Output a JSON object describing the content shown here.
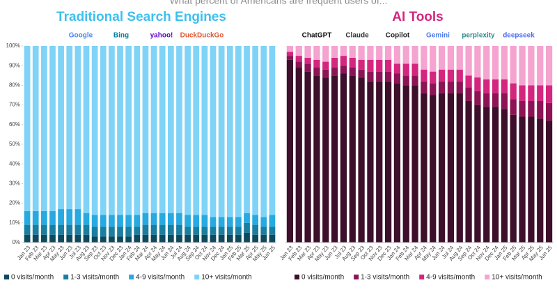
{
  "header": {
    "title": "What percent of Americans are frequent users of..."
  },
  "chart_data": [
    {
      "type": "bar",
      "stacked": true,
      "title": "Traditional Search Engines",
      "title_color": "#3cc0ef",
      "logos": [
        "Google",
        "Bing",
        "yahoo!",
        "DuckDuckGo"
      ],
      "logo_colors": [
        "#4285f4",
        "#00809d",
        "#6001d2",
        "#de5833"
      ],
      "categories": [
        "Jan 23",
        "Feb 23",
        "Mar 23",
        "Apr 23",
        "May 23",
        "Jun 23",
        "Jul 23",
        "Aug 23",
        "Sep 23",
        "Oct 23",
        "Nov 23",
        "Dec 23",
        "Jan 24",
        "Feb 24",
        "Mar 24",
        "Apr 24",
        "May 24",
        "Jun 24",
        "Jul 24",
        "Aug 24",
        "Sep 24",
        "Oct 24",
        "Nov 24",
        "Dec 24",
        "Jan 25",
        "Feb 25",
        "Mar 25",
        "Apr 25",
        "May 25",
        "Jun 25"
      ],
      "ylim": [
        0,
        100
      ],
      "yticks": [
        {
          "value": 0,
          "label": "0%"
        },
        {
          "value": 10,
          "label": "10%"
        },
        {
          "value": 20,
          "label": "20%"
        },
        {
          "value": 30,
          "label": "30%"
        },
        {
          "value": 40,
          "label": "40%"
        },
        {
          "value": 50,
          "label": "50%"
        },
        {
          "value": 60,
          "label": "60%"
        },
        {
          "value": 70,
          "label": "70%"
        },
        {
          "value": 80,
          "label": "80%"
        },
        {
          "value": 90,
          "label": "90%"
        },
        {
          "value": 100,
          "label": "100%"
        }
      ],
      "series": [
        {
          "name": "0 visits/month",
          "color": "#0d4a5e",
          "values": [
            4,
            4,
            4,
            4,
            4,
            4,
            4,
            4,
            3,
            3,
            3,
            3,
            3,
            4,
            4,
            4,
            4,
            4,
            4,
            4,
            4,
            4,
            4,
            4,
            4,
            4,
            5,
            4,
            4,
            4
          ]
        },
        {
          "name": "1-3 visits/month",
          "color": "#1a7ea0",
          "values": [
            5,
            5,
            5,
            5,
            5,
            5,
            5,
            5,
            5,
            5,
            5,
            5,
            5,
            4,
            5,
            5,
            5,
            5,
            5,
            4,
            4,
            4,
            4,
            4,
            4,
            4,
            5,
            5,
            4,
            4
          ]
        },
        {
          "name": "4-9 visits/month",
          "color": "#27a9e1",
          "values": [
            7,
            7,
            7,
            7,
            8,
            8,
            8,
            6,
            6,
            6,
            6,
            6,
            6,
            6,
            6,
            6,
            6,
            6,
            6,
            6,
            6,
            6,
            5,
            5,
            5,
            5,
            5,
            5,
            5,
            6
          ]
        },
        {
          "name": "10+ visits/month",
          "color": "#7fd3f7",
          "values": [
            84,
            84,
            84,
            84,
            83,
            83,
            83,
            85,
            86,
            86,
            86,
            86,
            86,
            86,
            85,
            85,
            85,
            85,
            85,
            86,
            86,
            86,
            87,
            87,
            87,
            87,
            85,
            86,
            87,
            86
          ]
        }
      ]
    },
    {
      "type": "bar",
      "stacked": true,
      "title": "AI Tools",
      "title_color": "#d4267e",
      "logos": [
        "ChatGPT",
        "Claude",
        "Copilot",
        "Gemini",
        "perplexity",
        "deepseek"
      ],
      "logo_colors": [
        "#111111",
        "#333333",
        "#222222",
        "#4f7be8",
        "#2a8c8c",
        "#4d6bfe"
      ],
      "categories": [
        "Jan 23",
        "Feb 23",
        "Mar 23",
        "Apr 23",
        "May 23",
        "Jun 23",
        "Jul 23",
        "Aug 23",
        "Sep 23",
        "Oct 23",
        "Nov 23",
        "Dec 23",
        "Jan 24",
        "Feb 24",
        "Mar 24",
        "Apr 24",
        "May 24",
        "Jun 24",
        "Jul 24",
        "Aug 24",
        "Sep 24",
        "Oct 24",
        "Nov 24",
        "Dec 24",
        "Jan 25",
        "Feb 25",
        "Mar 25",
        "Apr 25",
        "May 25",
        "Jun 25"
      ],
      "ylim": [
        0,
        100
      ],
      "series": [
        {
          "name": "0 visits/month",
          "color": "#3d0f2a",
          "values": [
            93,
            89,
            87,
            85,
            84,
            85,
            86,
            85,
            84,
            82,
            82,
            82,
            81,
            80,
            80,
            76,
            75,
            76,
            76,
            76,
            72,
            70,
            69,
            69,
            68,
            65,
            64,
            64,
            63,
            62
          ]
        },
        {
          "name": "1-3 visits/month",
          "color": "#8c1455",
          "values": [
            2,
            3,
            4,
            4,
            4,
            4,
            4,
            4,
            4,
            5,
            5,
            5,
            5,
            5,
            5,
            6,
            6,
            6,
            6,
            6,
            7,
            7,
            7,
            7,
            8,
            8,
            8,
            8,
            9,
            9
          ]
        },
        {
          "name": "4-9 visits/month",
          "color": "#d4267e",
          "values": [
            2,
            3,
            3,
            4,
            4,
            5,
            5,
            5,
            5,
            6,
            6,
            6,
            5,
            6,
            6,
            6,
            6,
            6,
            6,
            6,
            6,
            7,
            7,
            7,
            7,
            8,
            8,
            8,
            8,
            9
          ]
        },
        {
          "name": "10+ visits/month",
          "color": "#f5a3cf",
          "values": [
            3,
            5,
            6,
            7,
            8,
            6,
            5,
            6,
            7,
            7,
            7,
            7,
            9,
            9,
            9,
            12,
            13,
            12,
            12,
            12,
            15,
            16,
            17,
            17,
            17,
            19,
            20,
            20,
            20,
            20
          ]
        }
      ]
    }
  ]
}
